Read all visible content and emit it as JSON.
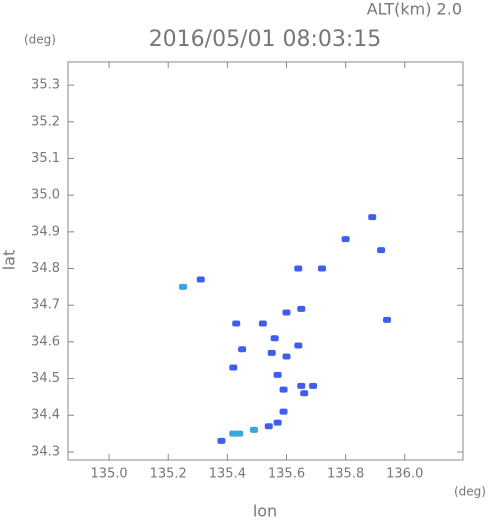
{
  "chart_data": {
    "type": "scatter",
    "title": "2016/05/01 08:03:15",
    "subtitle": "ALT(km) 2.0",
    "x_label": "lon",
    "y_label": "lat",
    "x_unit": "(deg)",
    "y_unit": "(deg)",
    "xlim": [
      134.861,
      136.197
    ],
    "ylim": [
      34.278,
      35.363
    ],
    "xticks": [
      {
        "value": 135,
        "label": "135.0"
      },
      135.2,
      135.4,
      135.6,
      135.8,
      {
        "value": 136,
        "label": "136.0"
      }
    ],
    "yticks": [
      34.3,
      34.4,
      34.5,
      34.6,
      34.7,
      34.8,
      34.9,
      {
        "value": 35,
        "label": "35.0"
      },
      35.1,
      35.2,
      35.3
    ],
    "series": [
      {
        "color": "#3f5ef0",
        "x": [
          135.31,
          135.89,
          135.8,
          135.92,
          135.64,
          135.72,
          135.94,
          135.65,
          135.6,
          135.52,
          135.43,
          135.56,
          135.6,
          135.45,
          135.42,
          135.57,
          135.65,
          135.69,
          135.66,
          135.59,
          135.57,
          135.54,
          135.38,
          135.64,
          135.55,
          135.59
        ],
        "values": [
          34.77,
          34.94,
          34.88,
          34.85,
          34.8,
          34.8,
          34.66,
          34.69,
          34.68,
          34.65,
          34.65,
          34.61,
          34.56,
          34.58,
          34.53,
          34.51,
          34.48,
          34.48,
          34.46,
          34.41,
          34.38,
          34.37,
          34.33,
          34.59,
          34.57,
          34.47
        ]
      },
      {
        "color": "#3aa6e0",
        "x": [
          135.25,
          135.49,
          135.44,
          135.42
        ],
        "values": [
          34.75,
          34.36,
          34.35,
          34.35
        ]
      }
    ]
  }
}
